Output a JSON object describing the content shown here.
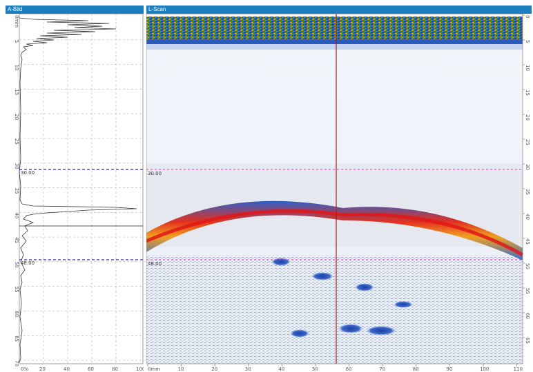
{
  "ascan": {
    "title": "A-Bild",
    "depth_unit": "mm",
    "depth_ticks": [
      "0mm",
      "5",
      "10",
      "15",
      "20",
      "25",
      "30",
      "35",
      "40",
      "45",
      "50",
      "55",
      "60",
      "65",
      "70"
    ],
    "amplitude_ticks": [
      "0%",
      "20",
      "40",
      "60",
      "80",
      "100"
    ],
    "gate_top_label": "30.00",
    "gate_bottom_label": "48.00"
  },
  "lscan": {
    "title": "L-Scan",
    "x_ticks": [
      "0mm",
      "10",
      "20",
      "30",
      "40",
      "50",
      "60",
      "70",
      "80",
      "90",
      "100",
      "110"
    ],
    "depth_ticks": [
      "0",
      "5",
      "10",
      "15",
      "20",
      "25",
      "30",
      "35",
      "40",
      "45",
      "50",
      "55",
      "60",
      "65"
    ],
    "gate_top_label": "30.00",
    "gate_bottom_label": "48.00"
  },
  "colors": {
    "titlebar": "#1b7fc0",
    "gate_ascan": "#1a2fb0",
    "gate_lscan": "#d040c0",
    "cursor": "#a02020"
  }
}
